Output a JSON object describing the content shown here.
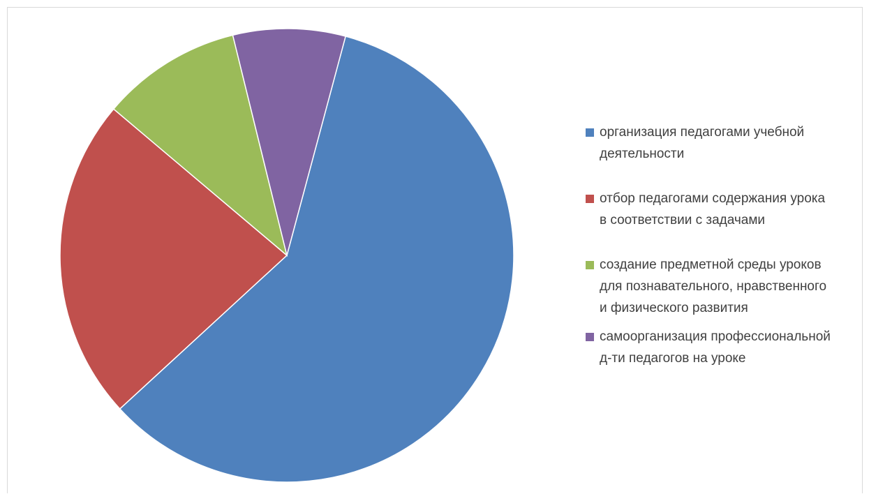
{
  "chart_data": {
    "type": "pie",
    "title": "",
    "legend_position": "right",
    "start_angle_deg": 15,
    "slices": [
      {
        "label": "организация педагогами учебной деятельности",
        "label_lines": [
          "организация педагогами учебной",
          "деятельности"
        ],
        "value": 59,
        "color": "#4F81BD"
      },
      {
        "label": "отбор педагогами содержания урока в соответствии с задачами",
        "label_lines": [
          "отбор педагогами содержания урока",
          "в соответствии с задачами"
        ],
        "value": 23,
        "color": "#C0504D"
      },
      {
        "label": "создание предметной среды уроков для познавательного, нравственного и физического развития",
        "label_lines": [
          "создание предметной среды уроков",
          "для познавательного, нравственного",
          "и физического развития"
        ],
        "value": 10,
        "color": "#9BBB59"
      },
      {
        "label": "самоорганизация профессиональной д-ти педагогов на уроке",
        "label_lines": [
          "самоорганизация профессиональной",
          "д-ти педагогов на уроке"
        ],
        "value": 8,
        "color": "#8064A2"
      }
    ]
  }
}
